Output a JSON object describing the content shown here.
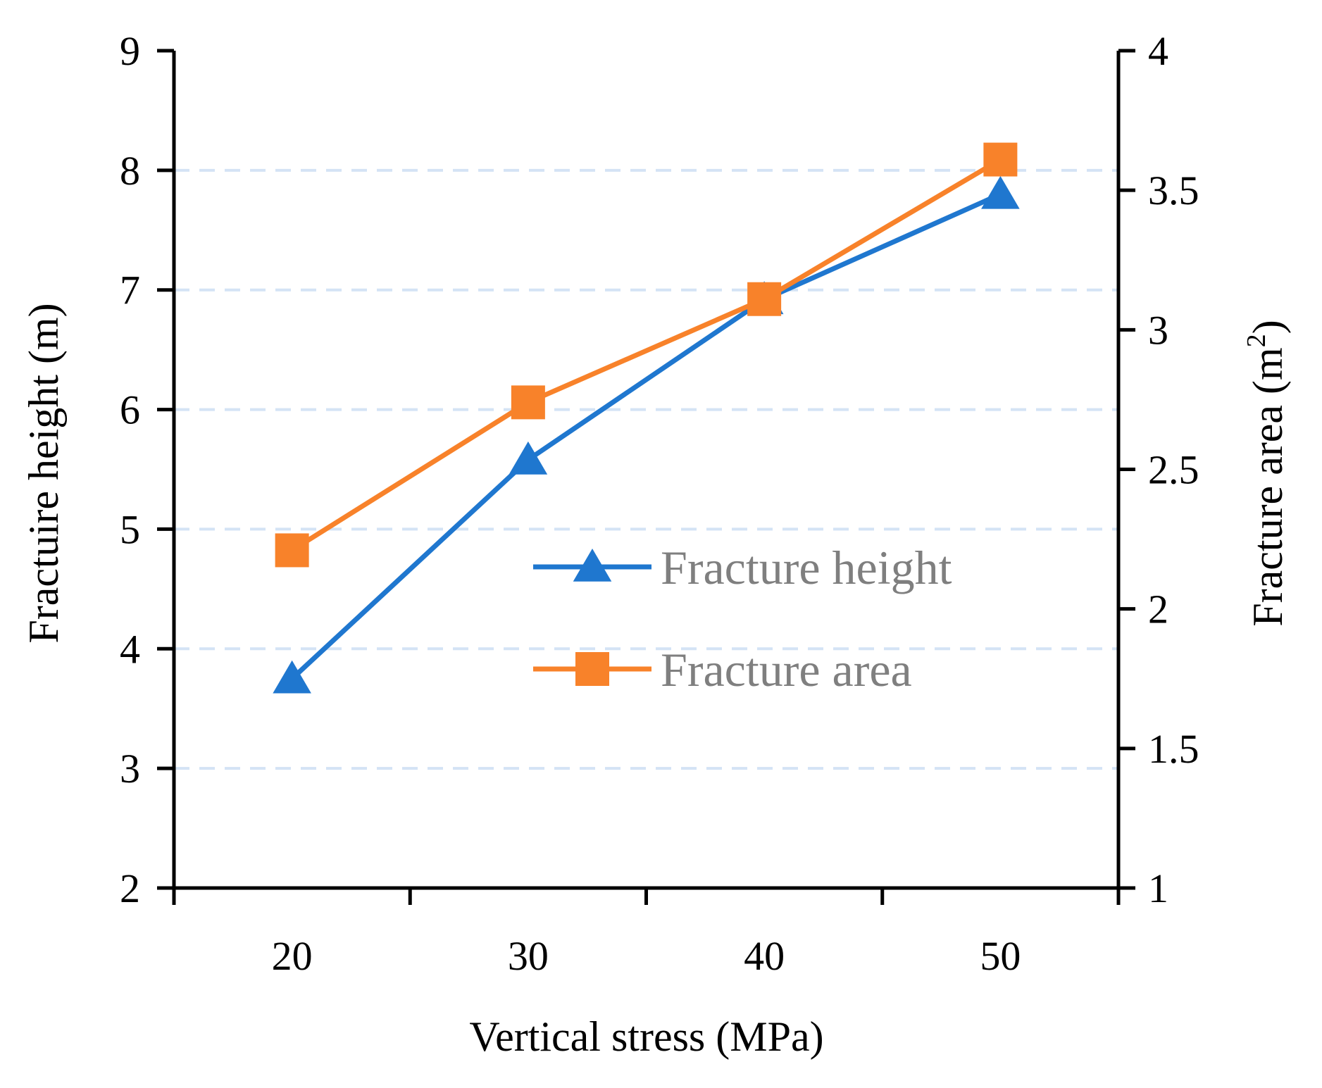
{
  "chart_data": {
    "type": "line",
    "title": "",
    "xlabel": "Vertical stress  (MPa)",
    "ylabel_left": "Fractuire height (m)",
    "ylabel_right_base": "Fracture area (m",
    "ylabel_right_superscript": "2",
    "ylabel_right_close": ")",
    "x": [
      20,
      30,
      40,
      50
    ],
    "x_ticks": [
      "20",
      "30",
      "40",
      "50"
    ],
    "xlim": [
      15,
      55
    ],
    "ylim_left": [
      2,
      9
    ],
    "y_ticks_left": [
      "2",
      "3",
      "4",
      "5",
      "6",
      "7",
      "8",
      "9"
    ],
    "ylim_right": [
      1,
      4
    ],
    "y_ticks_right": [
      "1",
      "1.5",
      "2",
      "2.5",
      "3",
      "3.5",
      "4"
    ],
    "grid": "horizontal dashed",
    "legend_position": "center-right",
    "series": [
      {
        "name": "Fracture height",
        "axis": "left",
        "marker": "triangle",
        "color": "#1f77cf",
        "values": [
          3.75,
          5.58,
          6.92,
          7.8
        ]
      },
      {
        "name": "Fracture area",
        "axis": "right",
        "marker": "square",
        "color": "#f8822a",
        "values": [
          2.21,
          2.74,
          3.11,
          3.61
        ]
      }
    ]
  }
}
